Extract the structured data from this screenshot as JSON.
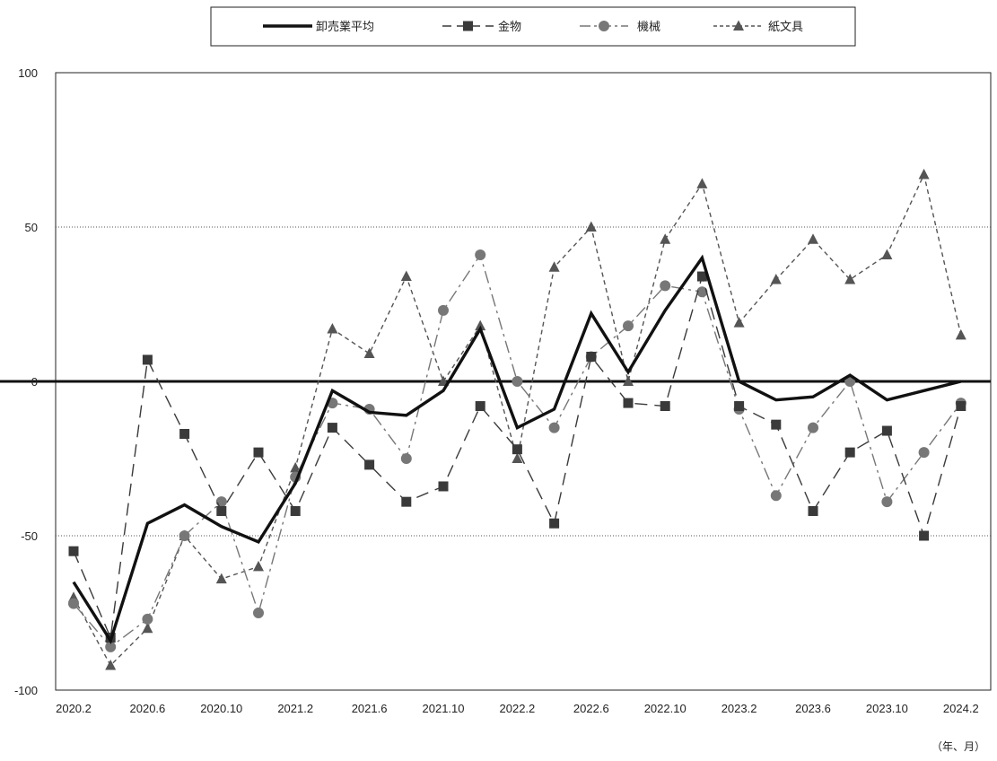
{
  "chart_data": {
    "type": "line",
    "x_categories": [
      "2020.2",
      "2020.4",
      "2020.6",
      "2020.8",
      "2020.10",
      "2020.12",
      "2021.2",
      "2021.4",
      "2021.6",
      "2021.8",
      "2021.10",
      "2021.12",
      "2022.2",
      "2022.4",
      "2022.6",
      "2022.8",
      "2022.10",
      "2022.12",
      "2023.2",
      "2023.4",
      "2023.6",
      "2023.8",
      "2023.10",
      "2023.12",
      "2024.2"
    ],
    "x_tick_labels": [
      "2020.2",
      "2020.6",
      "2020.10",
      "2021.2",
      "2021.6",
      "2021.10",
      "2022.2",
      "2022.6",
      "2022.10",
      "2023.2",
      "2023.6",
      "2023.10",
      "2024.2"
    ],
    "y_ticks": [
      100,
      50,
      0,
      -50,
      -100
    ],
    "y_tick_labels": [
      "100",
      "50",
      "0",
      "-50",
      "-100"
    ],
    "ylim": [
      -100,
      100
    ],
    "unit_label": "（年、月）",
    "grid": "dotted lines at 50 and -50",
    "legend_position": "top-center",
    "series": [
      {
        "name": "卸売業平均",
        "style": "solid-thick",
        "marker": "none",
        "color": "#111111",
        "values": [
          -65,
          -84,
          -46,
          -40,
          -47,
          -52,
          -33,
          -3,
          -10,
          -11,
          -3,
          17,
          -15,
          -9,
          22,
          3,
          23,
          40,
          0,
          -6,
          -5,
          2,
          -6,
          -3,
          0
        ]
      },
      {
        "name": "金物",
        "style": "long-dash",
        "marker": "square",
        "color": "#3a3a3a",
        "values": [
          -55,
          -83,
          7,
          -17,
          -42,
          -23,
          -42,
          -15,
          -27,
          -39,
          -34,
          -8,
          -22,
          -46,
          8,
          -7,
          -8,
          34,
          -8,
          -14,
          -42,
          -23,
          -16,
          -50,
          -8
        ]
      },
      {
        "name": "機械",
        "style": "dash-dot",
        "marker": "circle",
        "color": "#777777",
        "values": [
          -72,
          -86,
          -77,
          -50,
          -39,
          -75,
          -31,
          -7,
          -9,
          -25,
          23,
          41,
          0,
          -15,
          8,
          18,
          31,
          29,
          -9,
          -37,
          -15,
          0,
          -39,
          -23,
          -7
        ]
      },
      {
        "name": "紙文具",
        "style": "short-dash",
        "marker": "triangle",
        "color": "#555555",
        "values": [
          -70,
          -92,
          -80,
          -50,
          -64,
          -60,
          -28,
          17,
          9,
          34,
          0,
          18,
          -25,
          37,
          50,
          0,
          46,
          64,
          19,
          33,
          46,
          33,
          41,
          67,
          15
        ]
      }
    ]
  }
}
